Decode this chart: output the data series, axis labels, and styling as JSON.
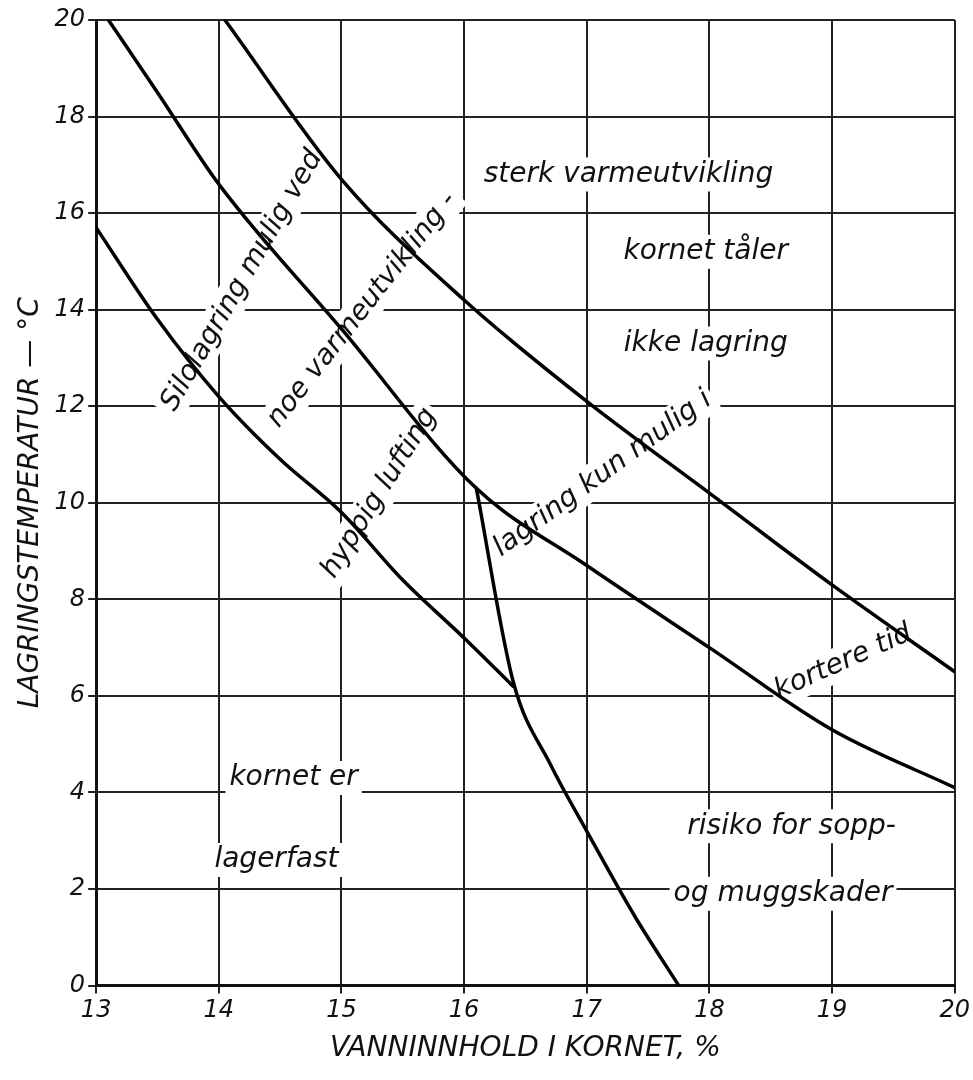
{
  "chart_data": {
    "type": "line",
    "xlabel": "VANNINNHOLD I KORNET, %",
    "ylabel": "LAGRINGSTEMPERATUR — °C",
    "xlim": [
      13,
      20
    ],
    "xticks": [
      13,
      14,
      15,
      16,
      17,
      18,
      19,
      20
    ],
    "ylim": [
      0,
      20
    ],
    "yticks": [
      0,
      2,
      4,
      6,
      8,
      10,
      12,
      14,
      16,
      18,
      20
    ],
    "grid": true,
    "legend": false,
    "marker": "none",
    "line_style": "solid",
    "series": [
      {
        "color": "#000000",
        "x": [
          13,
          13.5,
          14,
          14.5,
          15,
          15.5,
          16,
          16.4
        ],
        "values": [
          15.7,
          13.8,
          12.2,
          10.9,
          9.8,
          8.4,
          7.2,
          6.2
        ]
      },
      {
        "color": "#000000",
        "x": [
          13.1,
          13.5,
          14,
          15,
          16.1,
          17,
          18,
          19,
          20
        ],
        "values": [
          20,
          18.5,
          16.6,
          13.6,
          10.3,
          8.7,
          7,
          5.3,
          4.1
        ]
      },
      {
        "color": "#000000",
        "x": [
          14.05,
          15,
          16,
          17,
          18,
          19,
          20
        ],
        "values": [
          20,
          16.7,
          14.2,
          12.1,
          10.2,
          8.3,
          6.5
        ]
      },
      {
        "color": "#000000",
        "x": [
          16.1,
          16.4,
          16.7,
          17,
          17.4,
          17.75
        ],
        "values": [
          10.3,
          6.3,
          4.6,
          3.2,
          1.4,
          0
        ]
      }
    ],
    "annotations": [
      "sterk varmeutvikling",
      "kornet tåler",
      "ikke lagring",
      "noe varmeutvikling -",
      "lagring kun mulig i",
      "kortere tid",
      "Silolagring mulig ved",
      "hyppig lufting",
      "kornet er",
      "lagerfast",
      "risiko for sopp-",
      "og muggskader"
    ]
  }
}
